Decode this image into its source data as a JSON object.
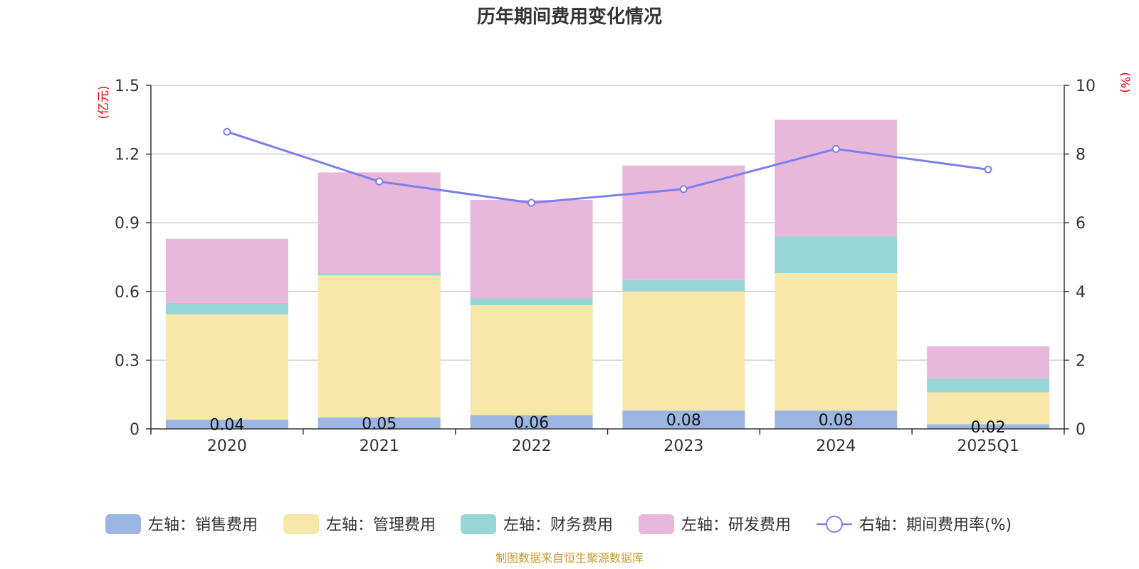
{
  "chart_data": {
    "type": "bar",
    "stacked": true,
    "title": "历年期间费用变化情况",
    "categories": [
      "2020",
      "2021",
      "2022",
      "2023",
      "2024",
      "2025Q1"
    ],
    "left_axis": {
      "unit": "(亿元)",
      "ylim": [
        0,
        1.5
      ],
      "ticks": [
        "0",
        "0.3",
        "0.6",
        "0.9",
        "1.2",
        "1.5"
      ]
    },
    "right_axis": {
      "unit": "(%)",
      "ylim": [
        0,
        10
      ],
      "ticks": [
        "0",
        "2",
        "4",
        "6",
        "8",
        "10"
      ]
    },
    "series": [
      {
        "name": "左轴：销售费用",
        "type": "bar",
        "axis": "left",
        "color": "#9bb6e2",
        "values": [
          0.04,
          0.05,
          0.06,
          0.08,
          0.08,
          0.02
        ],
        "labels": [
          "0.04",
          "0.05",
          "0.06",
          "0.08",
          "0.08",
          "0.02"
        ]
      },
      {
        "name": "左轴：管理费用",
        "type": "bar",
        "axis": "left",
        "color": "#f7e7a8",
        "values": [
          0.46,
          0.62,
          0.48,
          0.52,
          0.6,
          0.14
        ]
      },
      {
        "name": "左轴：财务费用",
        "type": "bar",
        "axis": "left",
        "color": "#98d5d6",
        "values": [
          0.05,
          0.01,
          0.03,
          0.05,
          0.16,
          0.06
        ]
      },
      {
        "name": "左轴：研发费用",
        "type": "bar",
        "axis": "left",
        "color": "#e7b8d9",
        "values": [
          0.28,
          0.44,
          0.43,
          0.5,
          0.51,
          0.14
        ]
      },
      {
        "name": "右轴：期间费用率(%)",
        "type": "line",
        "axis": "right",
        "color": "#7b7ff0",
        "values": [
          8.65,
          7.2,
          6.58,
          6.98,
          8.15,
          7.55
        ]
      }
    ],
    "legend_position": "bottom"
  },
  "footer": {
    "source": "制图数据来自恒生聚源数据库"
  }
}
